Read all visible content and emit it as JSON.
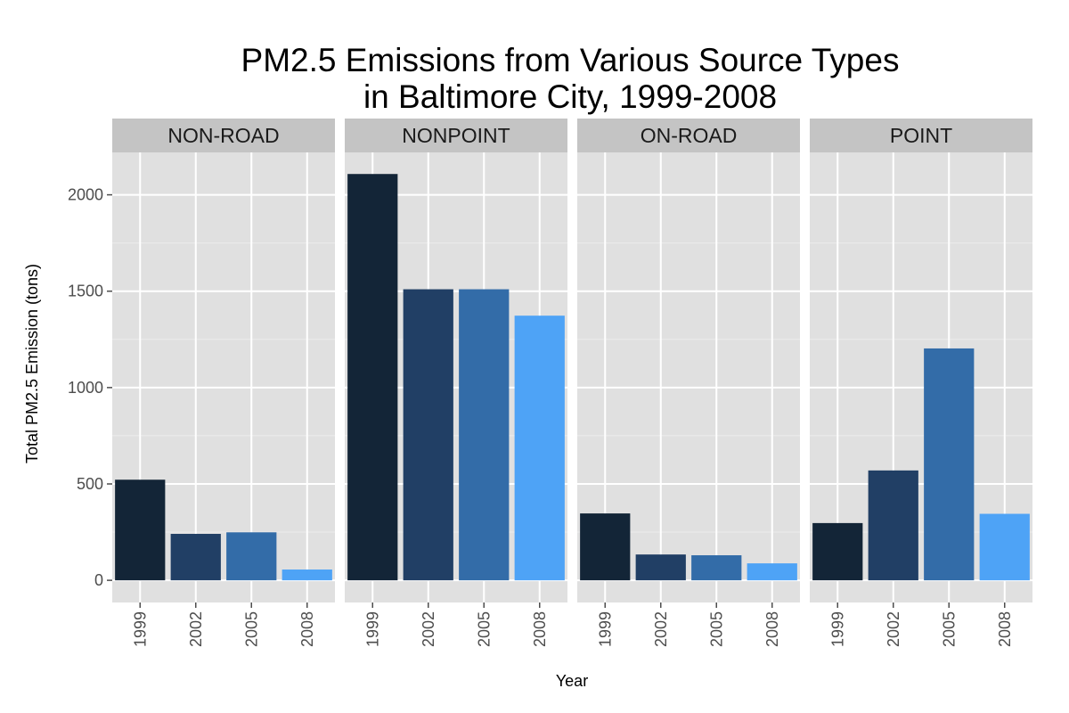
{
  "chart_data": {
    "type": "bar",
    "title_line1": "PM2.5 Emissions from Various Source Types",
    "title_line2": "in Baltimore City, 1999-2008",
    "xlabel": "Year",
    "ylabel": "Total PM2.5 Emission (tons)",
    "categories": [
      "1999",
      "2002",
      "2005",
      "2008"
    ],
    "ylim": [
      -115,
      2220
    ],
    "yticks": [
      0,
      500,
      1000,
      1500,
      2000
    ],
    "grid": true,
    "colors": [
      "#132537",
      "#213f65",
      "#336ca8",
      "#4ea3f6"
    ],
    "panel_background": "#e0e0e0",
    "strip_background": "#c4c4c4",
    "facets": [
      {
        "name": "NON-ROAD",
        "values": [
          522,
          241,
          249,
          56
        ]
      },
      {
        "name": "NONPOINT",
        "values": [
          2108,
          1510,
          1510,
          1373
        ]
      },
      {
        "name": "ON-ROAD",
        "values": [
          347,
          134,
          130,
          88
        ]
      },
      {
        "name": "POINT",
        "values": [
          297,
          570,
          1203,
          345
        ]
      }
    ]
  }
}
